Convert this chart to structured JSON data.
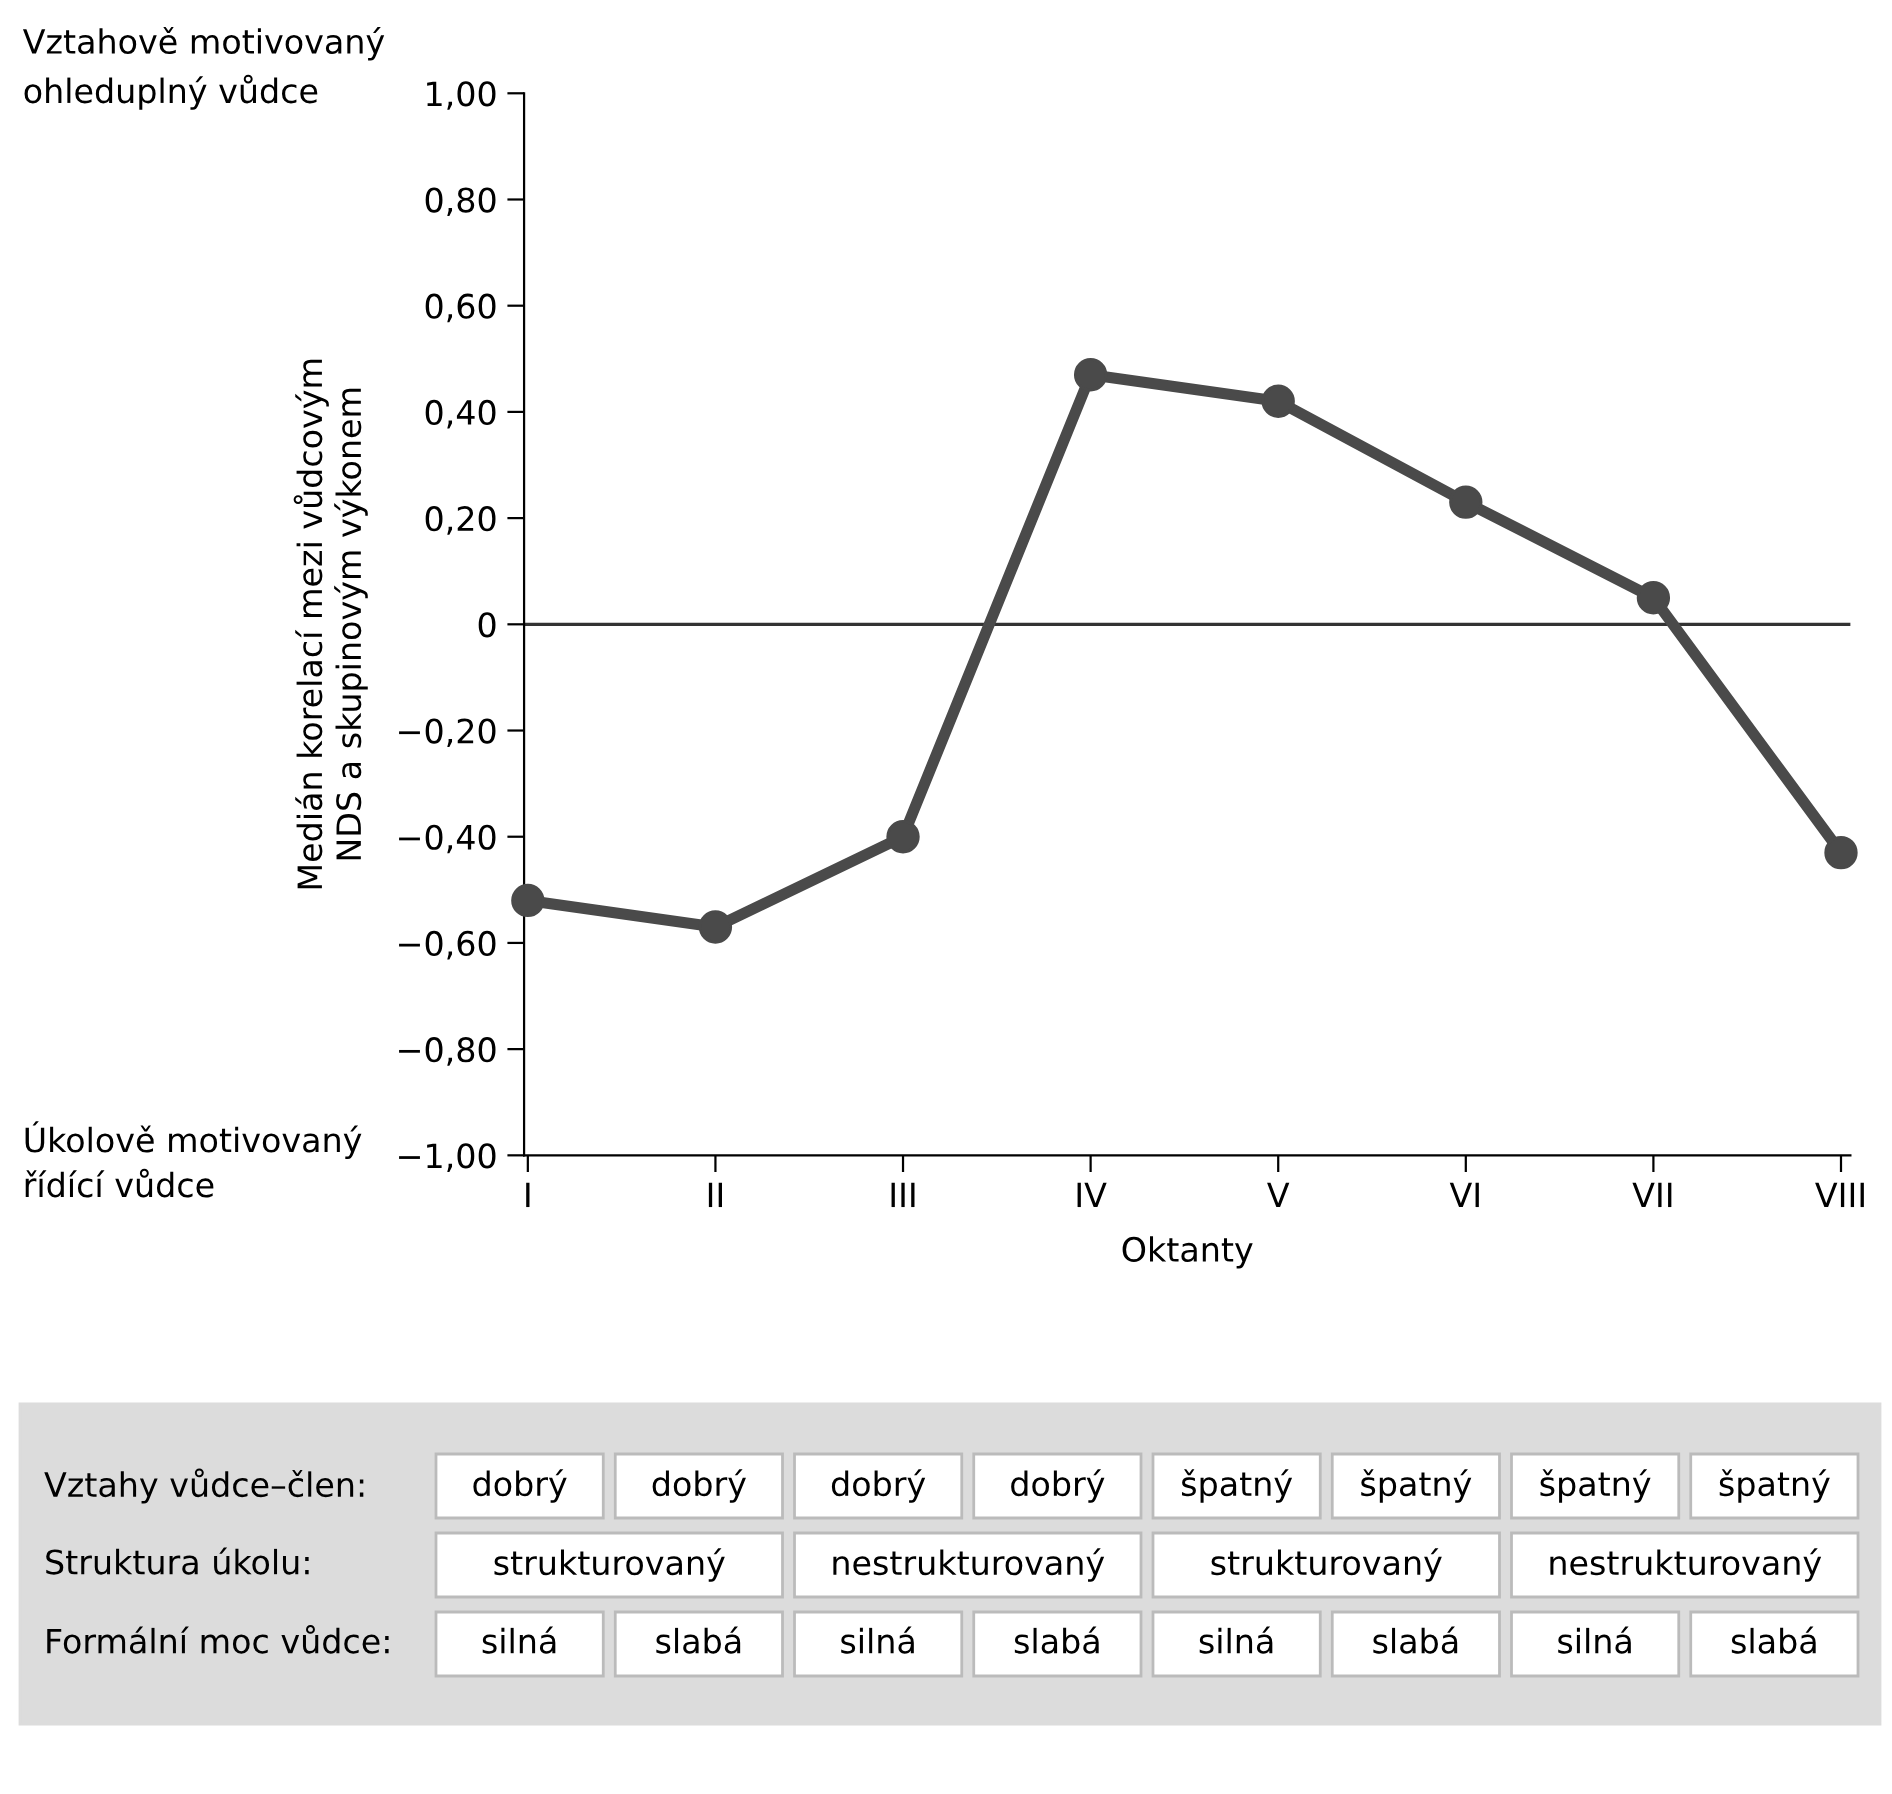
{
  "chart_data": {
    "type": "line",
    "categories": [
      "I",
      "II",
      "III",
      "IV",
      "V",
      "VI",
      "VII",
      "VIII"
    ],
    "series": [
      {
        "color": "#4a4a4a",
        "values": [
          -0.52,
          -0.57,
          -0.4,
          0.47,
          0.42,
          0.23,
          0.05,
          -0.43
        ]
      }
    ],
    "xlabel": "Oktanty",
    "ylabel": "Medián korelací mezi vůdcovým\nNDS a skupinovým výkonem",
    "ylim": [
      -1,
      1
    ],
    "yticks": [
      {
        "value": -1,
        "label": "−1,00"
      },
      {
        "value": -0.8,
        "label": "−0,80"
      },
      {
        "value": -0.6,
        "label": "−0,60"
      },
      {
        "value": -0.4,
        "label": "−0,40"
      },
      {
        "value": -0.2,
        "label": "−0,20"
      },
      0,
      {
        "value": 0.2,
        "label": "0,20"
      },
      {
        "value": 0.4,
        "label": "0,40"
      },
      {
        "value": 0.6,
        "label": "0,60"
      },
      {
        "value": 0.8,
        "label": "0,80"
      },
      {
        "value": 1,
        "label": "1,00"
      }
    ],
    "ref_lines": [
      {
        "axis": "y",
        "value": 0,
        "color": "#333333"
      }
    ],
    "marker": "circle",
    "line_style": "solid",
    "grid": false,
    "annotations": [
      "Vztahově motivovaný\nohleduplný vůdce",
      "Úkolově motivovaný\nřídící vůdce",
      "Vztahy vůdce–člen:",
      "dobrý",
      "dobrý",
      "dobrý",
      "dobrý",
      "špatný",
      "špatný",
      "špatný",
      "špatný",
      "Struktura úkolu:",
      "strukturovaný",
      "nestrukturovaný",
      "strukturovaný",
      "nestrukturovaný",
      "Formální moc vůdce:",
      "silná",
      "slabá",
      "silná",
      "slabá",
      "silná",
      "slabá",
      "silná",
      "slabá"
    ]
  }
}
